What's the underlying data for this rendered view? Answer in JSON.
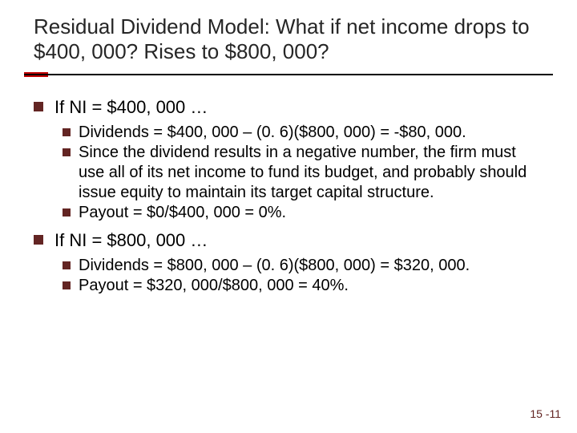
{
  "accent_color": "#c00000",
  "underline_color": "#000000",
  "bullet_color": "#632523",
  "pagenum_color": "#632523",
  "title": "Residual Dividend Model:  What if net income drops to $400, 000?  Rises to $800, 000?",
  "sections": [
    {
      "heading": "If NI = $400, 000 …",
      "items": [
        "Dividends = $400, 000 – (0. 6)($800, 000) = -$80, 000.",
        "Since the dividend results in a negative number, the firm must use all of its net income to fund its budget, and probably should issue equity to maintain its target capital structure.",
        "Payout = $0/$400, 000 = 0%."
      ]
    },
    {
      "heading": "If NI = $800, 000 …",
      "items": [
        "Dividends = $800, 000 – (0. 6)($800, 000) = $320, 000.",
        "Payout = $320, 000/$800, 000 = 40%."
      ]
    }
  ],
  "page_number": "15 -11"
}
